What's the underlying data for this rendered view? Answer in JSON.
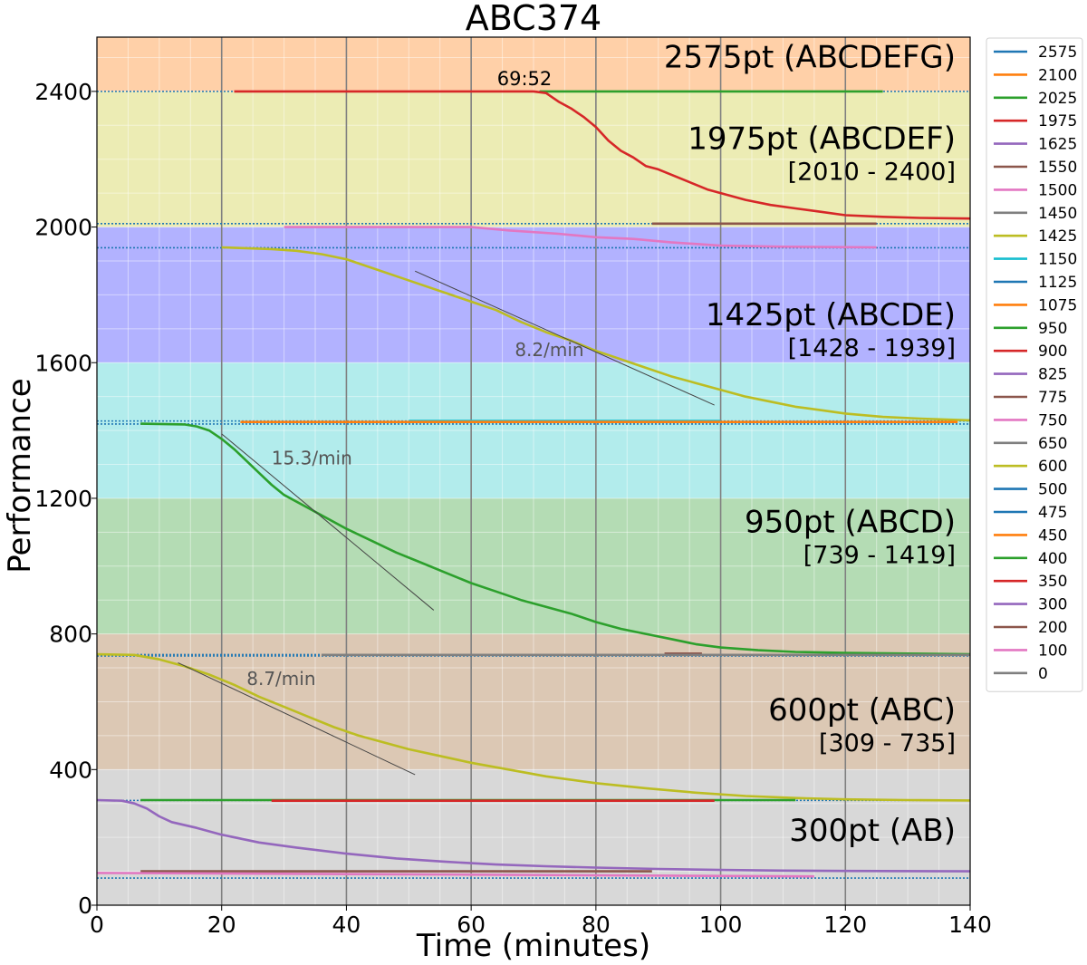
{
  "chart_data": {
    "type": "line",
    "title": "ABC374",
    "xlabel": "Time (minutes)",
    "ylabel": "Performance",
    "xlim": [
      0,
      140
    ],
    "ylim": [
      0,
      2560
    ],
    "x_ticks": [
      0,
      20,
      40,
      60,
      80,
      100,
      120,
      140
    ],
    "y_ticks": [
      0,
      400,
      800,
      1200,
      1600,
      2000,
      2400
    ],
    "grid": true,
    "legend_placement": "outside-right",
    "bands": [
      {
        "from": 2400,
        "to": 2560,
        "color": "#ffd0a8"
      },
      {
        "from": 2000,
        "to": 2400,
        "color": "#ececb4"
      },
      {
        "from": 1600,
        "to": 2000,
        "color": "#b2b2ff"
      },
      {
        "from": 1200,
        "to": 1600,
        "color": "#b2ecec"
      },
      {
        "from": 800,
        "to": 1200,
        "color": "#b4dcb4"
      },
      {
        "from": 400,
        "to": 800,
        "color": "#dcc8b4"
      },
      {
        "from": 0,
        "to": 400,
        "color": "#d8d8d8"
      }
    ],
    "band_labels": [
      {
        "title": "2575pt (ABCDEFG)",
        "range": "",
        "y": 2470
      },
      {
        "title": "1975pt (ABCDEF)",
        "range": "[2010 - 2400]",
        "y": 2230
      },
      {
        "title": "1425pt (ABCDE)",
        "range": "[1428 - 1939]",
        "y": 1710
      },
      {
        "title": "950pt (ABCD)",
        "range": "[739 - 1419]",
        "y": 1100
      },
      {
        "title": "600pt (ABC)",
        "range": "[309 - 735]",
        "y": 545
      },
      {
        "title": "300pt (AB)",
        "range": "",
        "y": 190
      }
    ],
    "solve_time_label": {
      "text": "69:52",
      "x": 70,
      "y": 2400
    },
    "vertical_lines": [
      20,
      40,
      60,
      80,
      100,
      120
    ],
    "threshold_lines": [
      2400,
      2010,
      1939,
      1428,
      1419,
      739,
      735,
      309,
      80
    ],
    "series": [
      {
        "name": "2575",
        "color": "#1f77b4",
        "points": []
      },
      {
        "name": "2100",
        "color": "#ff7f0e",
        "points": []
      },
      {
        "name": "2025",
        "color": "#2ca02c",
        "points": [
          [
            71,
            2400
          ],
          [
            126,
            2400
          ]
        ]
      },
      {
        "name": "1975",
        "color": "#d62728",
        "points": [
          [
            22,
            2400
          ],
          [
            70,
            2400
          ],
          [
            72,
            2395
          ],
          [
            74,
            2370
          ],
          [
            76,
            2350
          ],
          [
            78,
            2325
          ],
          [
            80,
            2295
          ],
          [
            82,
            2255
          ],
          [
            84,
            2225
          ],
          [
            86,
            2205
          ],
          [
            88,
            2180
          ],
          [
            90,
            2170
          ],
          [
            92,
            2155
          ],
          [
            94,
            2140
          ],
          [
            96,
            2125
          ],
          [
            98,
            2110
          ],
          [
            100,
            2100
          ],
          [
            104,
            2080
          ],
          [
            108,
            2065
          ],
          [
            112,
            2055
          ],
          [
            116,
            2045
          ],
          [
            120,
            2035
          ],
          [
            126,
            2030
          ],
          [
            132,
            2027
          ],
          [
            140,
            2025
          ]
        ]
      },
      {
        "name": "1625",
        "color": "#9467bd",
        "points": []
      },
      {
        "name": "1550",
        "color": "#8c564b",
        "points": [
          [
            89,
            2010
          ],
          [
            125,
            2010
          ]
        ]
      },
      {
        "name": "1500",
        "color": "#e377c2",
        "points": [
          [
            30,
            2000
          ],
          [
            60,
            2000
          ],
          [
            66,
            1990
          ],
          [
            74,
            1980
          ],
          [
            80,
            1970
          ],
          [
            86,
            1965
          ],
          [
            92,
            1955
          ],
          [
            100,
            1945
          ],
          [
            110,
            1942
          ],
          [
            125,
            1940
          ]
        ]
      },
      {
        "name": "1450",
        "color": "#7f7f7f",
        "points": []
      },
      {
        "name": "1425",
        "color": "#bcbd22",
        "points": [
          [
            20,
            1940
          ],
          [
            28,
            1935
          ],
          [
            32,
            1930
          ],
          [
            36,
            1920
          ],
          [
            40,
            1905
          ],
          [
            44,
            1880
          ],
          [
            48,
            1855
          ],
          [
            52,
            1830
          ],
          [
            56,
            1805
          ],
          [
            60,
            1780
          ],
          [
            64,
            1755
          ],
          [
            68,
            1720
          ],
          [
            72,
            1690
          ],
          [
            76,
            1665
          ],
          [
            80,
            1635
          ],
          [
            84,
            1610
          ],
          [
            88,
            1585
          ],
          [
            92,
            1560
          ],
          [
            96,
            1540
          ],
          [
            100,
            1520
          ],
          [
            104,
            1500
          ],
          [
            108,
            1485
          ],
          [
            112,
            1470
          ],
          [
            116,
            1460
          ],
          [
            120,
            1450
          ],
          [
            126,
            1440
          ],
          [
            132,
            1435
          ],
          [
            140,
            1430
          ]
        ]
      },
      {
        "name": "1150",
        "color": "#17becf",
        "points": [
          [
            50,
            1428
          ],
          [
            100,
            1428
          ]
        ]
      },
      {
        "name": "1125",
        "color": "#1f77b4",
        "points": []
      },
      {
        "name": "1075",
        "color": "#ff7f0e",
        "points": [
          [
            23,
            1425
          ],
          [
            138,
            1425
          ]
        ]
      },
      {
        "name": "950",
        "color": "#2ca02c",
        "points": [
          [
            7,
            1420
          ],
          [
            14,
            1418
          ],
          [
            16,
            1412
          ],
          [
            18,
            1400
          ],
          [
            20,
            1375
          ],
          [
            22,
            1345
          ],
          [
            24,
            1310
          ],
          [
            26,
            1275
          ],
          [
            28,
            1240
          ],
          [
            30,
            1210
          ],
          [
            33,
            1180
          ],
          [
            36,
            1150
          ],
          [
            40,
            1110
          ],
          [
            44,
            1075
          ],
          [
            48,
            1040
          ],
          [
            52,
            1010
          ],
          [
            56,
            980
          ],
          [
            60,
            950
          ],
          [
            64,
            925
          ],
          [
            68,
            900
          ],
          [
            72,
            880
          ],
          [
            76,
            860
          ],
          [
            80,
            835
          ],
          [
            84,
            815
          ],
          [
            88,
            800
          ],
          [
            92,
            785
          ],
          [
            96,
            770
          ],
          [
            100,
            760
          ],
          [
            106,
            752
          ],
          [
            112,
            747
          ],
          [
            120,
            744
          ],
          [
            130,
            742
          ],
          [
            140,
            740
          ]
        ]
      },
      {
        "name": "900",
        "color": "#d62728",
        "points": []
      },
      {
        "name": "825",
        "color": "#9467bd",
        "points": []
      },
      {
        "name": "775",
        "color": "#8c564b",
        "points": [
          [
            91,
            742
          ],
          [
            97,
            742
          ]
        ]
      },
      {
        "name": "750",
        "color": "#e377c2",
        "points": []
      },
      {
        "name": "650",
        "color": "#7f7f7f",
        "points": [
          [
            36,
            738
          ],
          [
            140,
            738
          ]
        ]
      },
      {
        "name": "600",
        "color": "#bcbd22",
        "points": [
          [
            0,
            740
          ],
          [
            6,
            738
          ],
          [
            10,
            725
          ],
          [
            14,
            705
          ],
          [
            18,
            680
          ],
          [
            22,
            650
          ],
          [
            26,
            615
          ],
          [
            30,
            585
          ],
          [
            34,
            555
          ],
          [
            38,
            525
          ],
          [
            42,
            500
          ],
          [
            46,
            480
          ],
          [
            50,
            460
          ],
          [
            55,
            440
          ],
          [
            60,
            420
          ],
          [
            66,
            400
          ],
          [
            72,
            380
          ],
          [
            80,
            360
          ],
          [
            88,
            345
          ],
          [
            96,
            332
          ],
          [
            104,
            322
          ],
          [
            112,
            316
          ],
          [
            120,
            312
          ],
          [
            130,
            310
          ],
          [
            140,
            309
          ]
        ]
      },
      {
        "name": "500",
        "color": "#1f77b4",
        "points": []
      },
      {
        "name": "475",
        "color": "#1f77b4",
        "points": []
      },
      {
        "name": "450",
        "color": "#ff7f0e",
        "points": []
      },
      {
        "name": "400",
        "color": "#2ca02c",
        "points": [
          [
            7,
            310
          ],
          [
            112,
            310
          ]
        ]
      },
      {
        "name": "350",
        "color": "#d62728",
        "points": [
          [
            28,
            308
          ],
          [
            99,
            308
          ]
        ]
      },
      {
        "name": "300",
        "color": "#9467bd",
        "points": [
          [
            0,
            310
          ],
          [
            4,
            308
          ],
          [
            6,
            300
          ],
          [
            8,
            285
          ],
          [
            10,
            262
          ],
          [
            12,
            245
          ],
          [
            16,
            228
          ],
          [
            20,
            208
          ],
          [
            26,
            185
          ],
          [
            32,
            170
          ],
          [
            40,
            152
          ],
          [
            48,
            138
          ],
          [
            56,
            128
          ],
          [
            64,
            120
          ],
          [
            72,
            115
          ],
          [
            80,
            111
          ],
          [
            90,
            107
          ],
          [
            100,
            104
          ],
          [
            110,
            102
          ],
          [
            120,
            101
          ],
          [
            140,
            100
          ]
        ]
      },
      {
        "name": "200",
        "color": "#8c564b",
        "points": [
          [
            7,
            100
          ],
          [
            89,
            100
          ]
        ]
      },
      {
        "name": "100",
        "color": "#e377c2",
        "points": [
          [
            0,
            95
          ],
          [
            60,
            90
          ],
          [
            115,
            85
          ]
        ]
      },
      {
        "name": "0",
        "color": "#7f7f7f",
        "points": []
      }
    ],
    "trend_lines": [
      {
        "label": "8.2/min",
        "from": [
          51,
          1870
        ],
        "to": [
          99,
          1475
        ],
        "label_at": [
          67,
          1620
        ]
      },
      {
        "label": "15.3/min",
        "from": [
          20,
          1390
        ],
        "to": [
          54,
          870
        ],
        "label_at": [
          28,
          1300
        ]
      },
      {
        "label": "8.7/min",
        "from": [
          13,
          715
        ],
        "to": [
          51,
          385
        ],
        "label_at": [
          24,
          650
        ]
      }
    ]
  }
}
